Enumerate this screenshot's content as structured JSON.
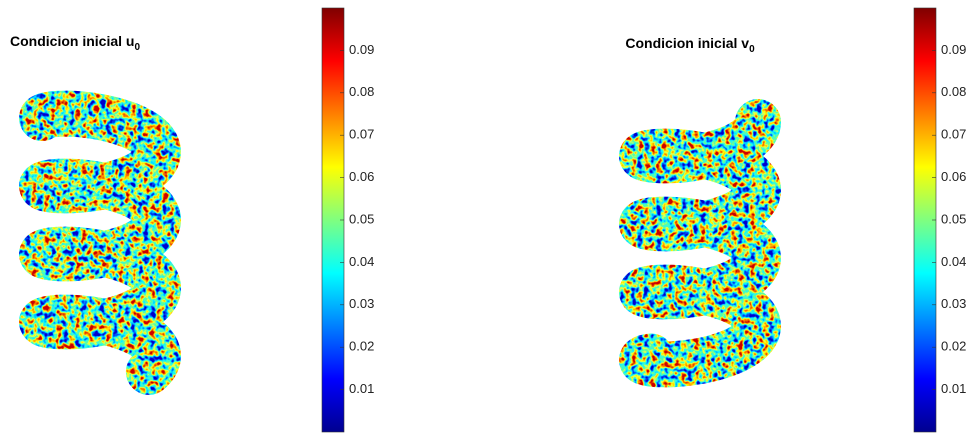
{
  "chart_data": [
    {
      "type": "surface",
      "title": "Condicion inicial u",
      "title_subscript": "0",
      "colormap": "jet",
      "clim": [
        0,
        0.1
      ],
      "cticks": [
        0.01,
        0.02,
        0.03,
        0.04,
        0.05,
        0.06,
        0.07,
        0.08,
        0.09
      ]
    },
    {
      "type": "surface",
      "title": "Condicion inicial v",
      "title_subscript": "0",
      "colormap": "jet",
      "clim": [
        0,
        0.1
      ],
      "cticks": [
        0.01,
        0.02,
        0.03,
        0.04,
        0.05,
        0.06,
        0.07,
        0.08,
        0.09
      ]
    }
  ]
}
